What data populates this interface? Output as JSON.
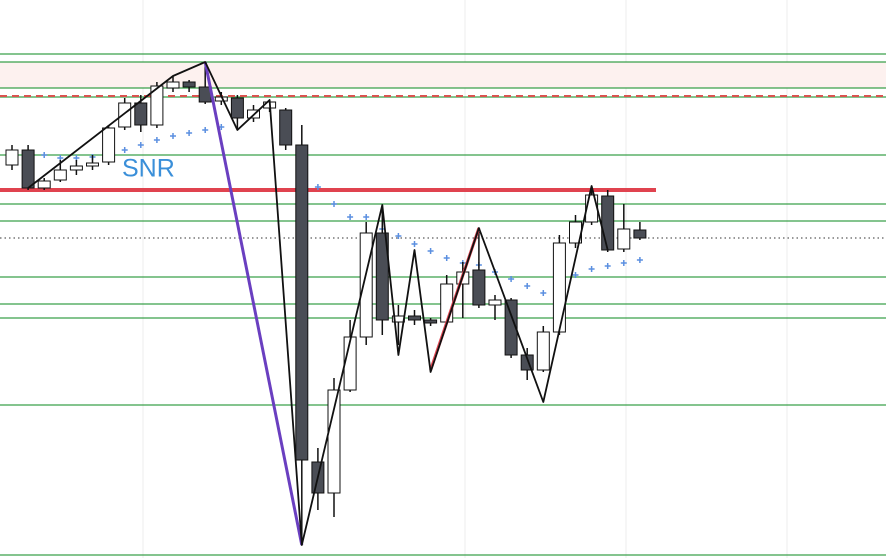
{
  "chart_data": {
    "type": "candlestick",
    "annotation": "SNR",
    "ylim": [
      0,
      558
    ],
    "open": [
      393,
      408,
      370,
      378,
      388,
      392,
      396,
      431,
      455,
      433,
      470,
      476,
      471,
      457,
      460,
      440,
      450,
      448,
      413,
      96,
      65,
      168,
      221,
      325,
      236,
      242,
      238,
      236,
      274,
      288,
      253,
      258,
      203,
      188,
      226,
      315,
      336,
      362,
      309,
      328
    ],
    "high": [
      413,
      413,
      380,
      398,
      398,
      403,
      433,
      460,
      463,
      476,
      482,
      478,
      496,
      466,
      463,
      453,
      458,
      450,
      433,
      110,
      180,
      238,
      336,
      353,
      253,
      248,
      240,
      283,
      296,
      326,
      263,
      260,
      210,
      232,
      323,
      343,
      370,
      368,
      354,
      336
    ],
    "low": [
      388,
      368,
      368,
      376,
      383,
      388,
      393,
      428,
      426,
      430,
      466,
      466,
      454,
      453,
      428,
      436,
      446,
      408,
      13,
      48,
      41,
      166,
      213,
      223,
      213,
      233,
      232,
      233,
      240,
      250,
      238,
      200,
      178,
      186,
      223,
      310,
      333,
      306,
      306,
      318
    ],
    "close": [
      408,
      370,
      377,
      388,
      392,
      395,
      430,
      455,
      433,
      472,
      476,
      471,
      456,
      461,
      440,
      448,
      456,
      413,
      98,
      65,
      168,
      221,
      325,
      238,
      242,
      238,
      235,
      274,
      286,
      253,
      258,
      203,
      188,
      226,
      315,
      336,
      363,
      308,
      329,
      320
    ],
    "up_color": "#ffffff",
    "down_color": "#4a4d55",
    "levels": {
      "values": [
        504,
        496,
        470,
        461,
        403,
        354,
        337,
        281,
        254,
        240,
        153,
        3
      ],
      "color": "#3aa04a"
    },
    "zone": {
      "values": [
        470,
        496
      ],
      "color": "#fdf1ef"
    },
    "dashed_level": {
      "value": 462,
      "color": "#d9534f"
    },
    "resistance": {
      "value": 368,
      "color": "#e0434f"
    },
    "price_line": {
      "value": 320,
      "color": "#333333"
    },
    "zigzag": {
      "x": [
        1,
        10,
        12,
        14,
        16,
        18,
        23,
        24,
        25,
        26,
        29,
        33,
        36,
        37
      ],
      "values": [
        370,
        482,
        496,
        428,
        458,
        13,
        353,
        203,
        308,
        186,
        330,
        156,
        372,
        308
      ],
      "color": "#111111"
    },
    "swing_down": {
      "x": [
        12,
        18
      ],
      "values": [
        496,
        13
      ],
      "color": "#6a3fc0"
    },
    "swing_up": {
      "x": [
        26,
        29
      ],
      "values": [
        188,
        330
      ],
      "color": "#e0434f"
    },
    "psar": {
      "x": [
        2,
        3,
        4,
        5,
        6,
        7,
        8,
        9,
        10,
        11,
        12,
        13,
        19,
        20,
        21,
        22,
        23,
        24,
        25,
        26,
        27,
        28,
        29,
        30,
        31,
        32,
        33,
        35,
        36,
        37,
        38,
        39
      ],
      "values": [
        403,
        400,
        400,
        401,
        403,
        408,
        413,
        418,
        422,
        425,
        428,
        431,
        371,
        354,
        341,
        341,
        329,
        322,
        314,
        307,
        300,
        295,
        293,
        286,
        279,
        272,
        265,
        283,
        289,
        292,
        295,
        298
      ],
      "color": "#5b8fe0"
    }
  }
}
